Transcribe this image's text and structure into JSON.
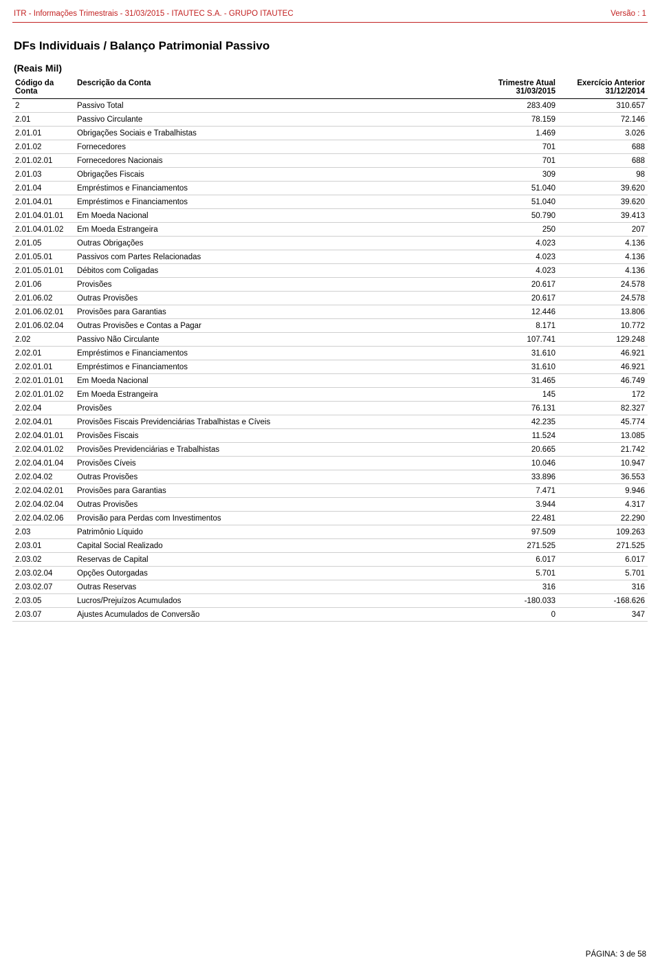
{
  "header": {
    "left": "ITR - Informações Trimestrais - 31/03/2015 - ITAUTEC S.A. - GRUPO ITAUTEC",
    "right": "Versão : 1",
    "color": "#c22020"
  },
  "section_title": "DFs Individuais / Balanço Patrimonial Passivo",
  "reais_label": "(Reais Mil)",
  "table": {
    "columns": [
      {
        "line1": "Código da",
        "line2": "Conta",
        "align": "left"
      },
      {
        "line1": "Descrição da Conta",
        "line2": "",
        "align": "left"
      },
      {
        "line1": "Trimestre Atual",
        "line2": "31/03/2015",
        "align": "right"
      },
      {
        "line1": "Exercício Anterior",
        "line2": "31/12/2014",
        "align": "right"
      }
    ],
    "rows": [
      [
        "2",
        "Passivo Total",
        "283.409",
        "310.657"
      ],
      [
        "2.01",
        "Passivo Circulante",
        "78.159",
        "72.146"
      ],
      [
        "2.01.01",
        "Obrigações Sociais e Trabalhistas",
        "1.469",
        "3.026"
      ],
      [
        "2.01.02",
        "Fornecedores",
        "701",
        "688"
      ],
      [
        "2.01.02.01",
        "Fornecedores Nacionais",
        "701",
        "688"
      ],
      [
        "2.01.03",
        "Obrigações Fiscais",
        "309",
        "98"
      ],
      [
        "2.01.04",
        "Empréstimos e Financiamentos",
        "51.040",
        "39.620"
      ],
      [
        "2.01.04.01",
        "Empréstimos e Financiamentos",
        "51.040",
        "39.620"
      ],
      [
        "2.01.04.01.01",
        "Em Moeda Nacional",
        "50.790",
        "39.413"
      ],
      [
        "2.01.04.01.02",
        "Em Moeda Estrangeira",
        "250",
        "207"
      ],
      [
        "2.01.05",
        "Outras Obrigações",
        "4.023",
        "4.136"
      ],
      [
        "2.01.05.01",
        "Passivos com Partes Relacionadas",
        "4.023",
        "4.136"
      ],
      [
        "2.01.05.01.01",
        "Débitos com Coligadas",
        "4.023",
        "4.136"
      ],
      [
        "2.01.06",
        "Provisões",
        "20.617",
        "24.578"
      ],
      [
        "2.01.06.02",
        "Outras Provisões",
        "20.617",
        "24.578"
      ],
      [
        "2.01.06.02.01",
        "Provisões para Garantias",
        "12.446",
        "13.806"
      ],
      [
        "2.01.06.02.04",
        "Outras Provisões e Contas a Pagar",
        "8.171",
        "10.772"
      ],
      [
        "2.02",
        "Passivo Não Circulante",
        "107.741",
        "129.248"
      ],
      [
        "2.02.01",
        "Empréstimos e Financiamentos",
        "31.610",
        "46.921"
      ],
      [
        "2.02.01.01",
        "Empréstimos e Financiamentos",
        "31.610",
        "46.921"
      ],
      [
        "2.02.01.01.01",
        "Em Moeda Nacional",
        "31.465",
        "46.749"
      ],
      [
        "2.02.01.01.02",
        "Em Moeda Estrangeira",
        "145",
        "172"
      ],
      [
        "2.02.04",
        "Provisões",
        "76.131",
        "82.327"
      ],
      [
        "2.02.04.01",
        "Provisões Fiscais Previdenciárias Trabalhistas e Cíveis",
        "42.235",
        "45.774"
      ],
      [
        "2.02.04.01.01",
        "Provisões Fiscais",
        "11.524",
        "13.085"
      ],
      [
        "2.02.04.01.02",
        "Provisões Previdenciárias e Trabalhistas",
        "20.665",
        "21.742"
      ],
      [
        "2.02.04.01.04",
        "Provisões Cíveis",
        "10.046",
        "10.947"
      ],
      [
        "2.02.04.02",
        "Outras Provisões",
        "33.896",
        "36.553"
      ],
      [
        "2.02.04.02.01",
        "Provisões para Garantias",
        "7.471",
        "9.946"
      ],
      [
        "2.02.04.02.04",
        "Outras Provisões",
        "3.944",
        "4.317"
      ],
      [
        "2.02.04.02.06",
        "Provisão para Perdas com Investimentos",
        "22.481",
        "22.290"
      ],
      [
        "2.03",
        "Patrimônio Líquido",
        "97.509",
        "109.263"
      ],
      [
        "2.03.01",
        "Capital Social Realizado",
        "271.525",
        "271.525"
      ],
      [
        "2.03.02",
        "Reservas de Capital",
        "6.017",
        "6.017"
      ],
      [
        "2.03.02.04",
        "Opções Outorgadas",
        "5.701",
        "5.701"
      ],
      [
        "2.03.02.07",
        "Outras Reservas",
        "316",
        "316"
      ],
      [
        "2.03.05",
        "Lucros/Prejuízos Acumulados",
        "-180.033",
        "-168.626"
      ],
      [
        "2.03.07",
        "Ajustes Acumulados de Conversão",
        "0",
        "347"
      ]
    ],
    "border_color": "#cfcfcf"
  },
  "footer": "PÁGINA: 3 de 58"
}
